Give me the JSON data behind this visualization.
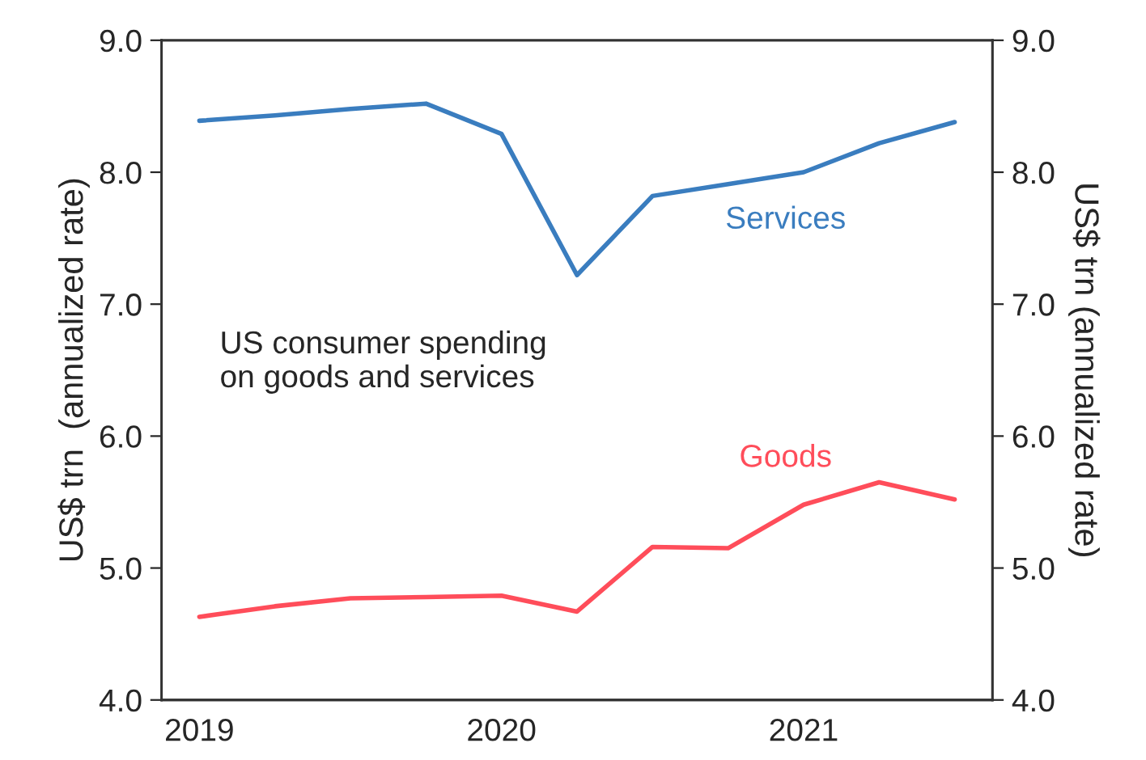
{
  "chart_data": {
    "type": "line",
    "categories": [
      "2019",
      null,
      null,
      null,
      "2020",
      null,
      null,
      null,
      "2021",
      null,
      null
    ],
    "series": [
      {
        "name": "Services",
        "color": "#3a7dbf",
        "values": [
          8.39,
          8.43,
          8.48,
          8.52,
          8.29,
          7.22,
          7.82,
          7.91,
          8.0,
          8.22,
          8.38
        ]
      },
      {
        "name": "Goods",
        "color": "#ff4d5a",
        "values": [
          4.63,
          4.71,
          4.77,
          4.78,
          4.79,
          4.67,
          5.16,
          5.15,
          5.48,
          5.65,
          5.52
        ]
      }
    ],
    "ylabel": "US$ trn  (annualized rate)",
    "y2label": "US$ trn (annualized rate)",
    "ylim": [
      4.0,
      9.0
    ],
    "yticks": [
      {
        "value": 4,
        "label": "4.0"
      },
      {
        "value": 5,
        "label": "5.0"
      },
      {
        "value": 6,
        "label": "6.0"
      },
      {
        "value": 7,
        "label": "7.0"
      },
      {
        "value": 8,
        "label": "8.0"
      },
      {
        "value": 9,
        "label": "9.0"
      }
    ],
    "y2lim": [
      4.0,
      9.0
    ],
    "y2ticks": [
      {
        "value": 4,
        "label": "4.0"
      },
      {
        "value": 5,
        "label": "5.0"
      },
      {
        "value": 6,
        "label": "6.0"
      },
      {
        "value": 7,
        "label": "7.0"
      },
      {
        "value": 8,
        "label": "8.0"
      },
      {
        "value": 9,
        "label": "9.0"
      }
    ],
    "annotations": [
      "US consumer spending\non goods and services"
    ],
    "grid": false,
    "legend": false,
    "marker": "none",
    "line_style": "solid"
  }
}
